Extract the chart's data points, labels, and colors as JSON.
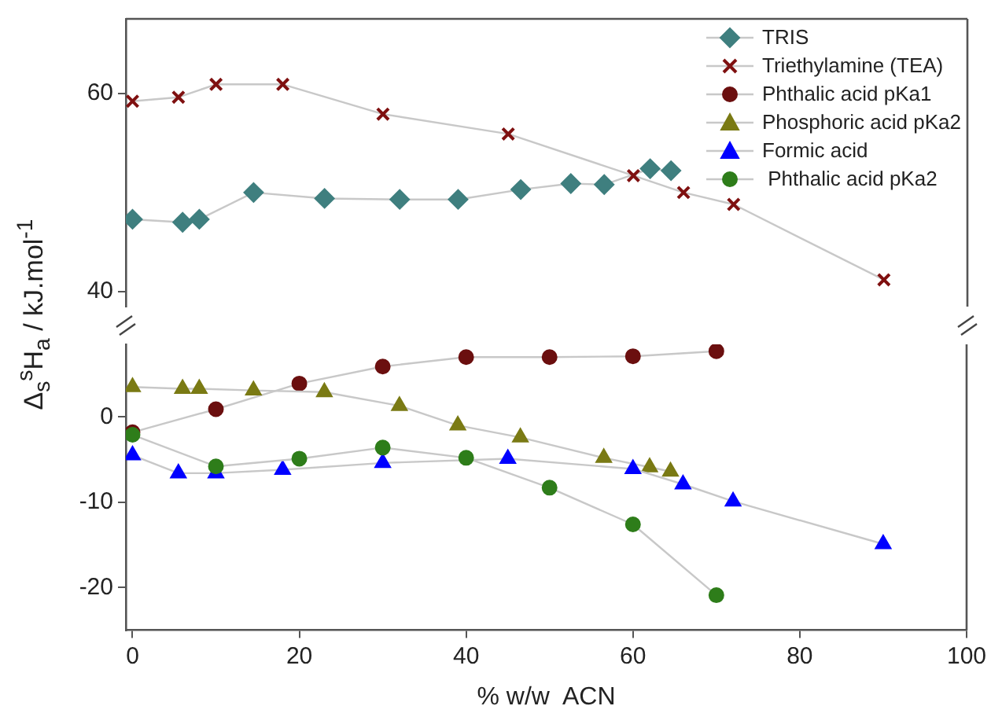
{
  "chart_data": [
    {
      "type": "line",
      "ylabel": "Δ$_{s}$$^{s}$H$_{a}$ / kJ.mol$^{-1}$",
      "xlim": [
        -0.8,
        100
      ],
      "ylim": [
        38.5,
        67.5
      ],
      "yticks": [
        40,
        60
      ],
      "tick_labels": "y",
      "grid": false,
      "legend": "top right",
      "series": [
        {
          "name": "TRIS",
          "color": "#3f7f7f",
          "marker": "diamond",
          "x": [
            0,
            6,
            8,
            14.5,
            23,
            32,
            39,
            46.5,
            52.5,
            56.5,
            62,
            64.5
          ],
          "values": [
            47.3,
            47.0,
            47.3,
            50.0,
            49.4,
            49.3,
            49.3,
            50.3,
            50.9,
            50.8,
            52.4,
            52.2
          ]
        },
        {
          "name": "Triethylamine (TEA)",
          "color": "#7f1010",
          "marker": "cross",
          "x": [
            0,
            5.5,
            10,
            18,
            30,
            45,
            60,
            66,
            72,
            90
          ],
          "values": [
            59.2,
            59.6,
            60.9,
            60.9,
            57.9,
            55.9,
            51.7,
            50.0,
            48.8,
            41.2
          ]
        }
      ]
    },
    {
      "type": "line",
      "xlabel": "% w/w  ACN",
      "xlim": [
        -0.8,
        100
      ],
      "xticks": [
        0,
        20,
        40,
        60,
        80,
        100
      ],
      "ylim": [
        -25,
        8.5
      ],
      "yticks": [
        -20,
        -10,
        0
      ],
      "grid": false,
      "legend": "top right",
      "series": [
        {
          "name": "Phthalic acid pKa1",
          "color": "#6b0f0f",
          "marker": "circle",
          "x": [
            0,
            10,
            20,
            30,
            40,
            50,
            60,
            70
          ],
          "values": [
            -1.8,
            0.9,
            3.9,
            5.9,
            7.0,
            7.0,
            7.1,
            7.7
          ]
        },
        {
          "name": "Phosphoric acid pKa2",
          "color": "#7a7a14",
          "marker": "triangle",
          "x": [
            0,
            6,
            8,
            14.5,
            23,
            32,
            39,
            46.5,
            56.5,
            62,
            64.5
          ],
          "values": [
            3.5,
            3.3,
            3.3,
            3.1,
            2.9,
            1.3,
            -1.0,
            -2.4,
            -4.8,
            -5.9,
            -6.4
          ]
        },
        {
          "name": "Formic acid",
          "color": "#0000ff",
          "marker": "triangle",
          "x": [
            0,
            5.5,
            10,
            18,
            30,
            45,
            60,
            66,
            72,
            90
          ],
          "values": [
            -4.5,
            -6.6,
            -6.6,
            -6.2,
            -5.4,
            -4.9,
            -6.1,
            -7.9,
            -9.9,
            -14.9
          ]
        },
        {
          "name": " Phthalic acid pKa2",
          "color": "#2e7d1a",
          "marker": "circle",
          "x": [
            0,
            10,
            20,
            30,
            40,
            50,
            60,
            70
          ],
          "values": [
            -2.1,
            -5.8,
            -4.9,
            -3.6,
            -4.8,
            -8.3,
            -12.6,
            -20.9
          ]
        }
      ]
    }
  ]
}
